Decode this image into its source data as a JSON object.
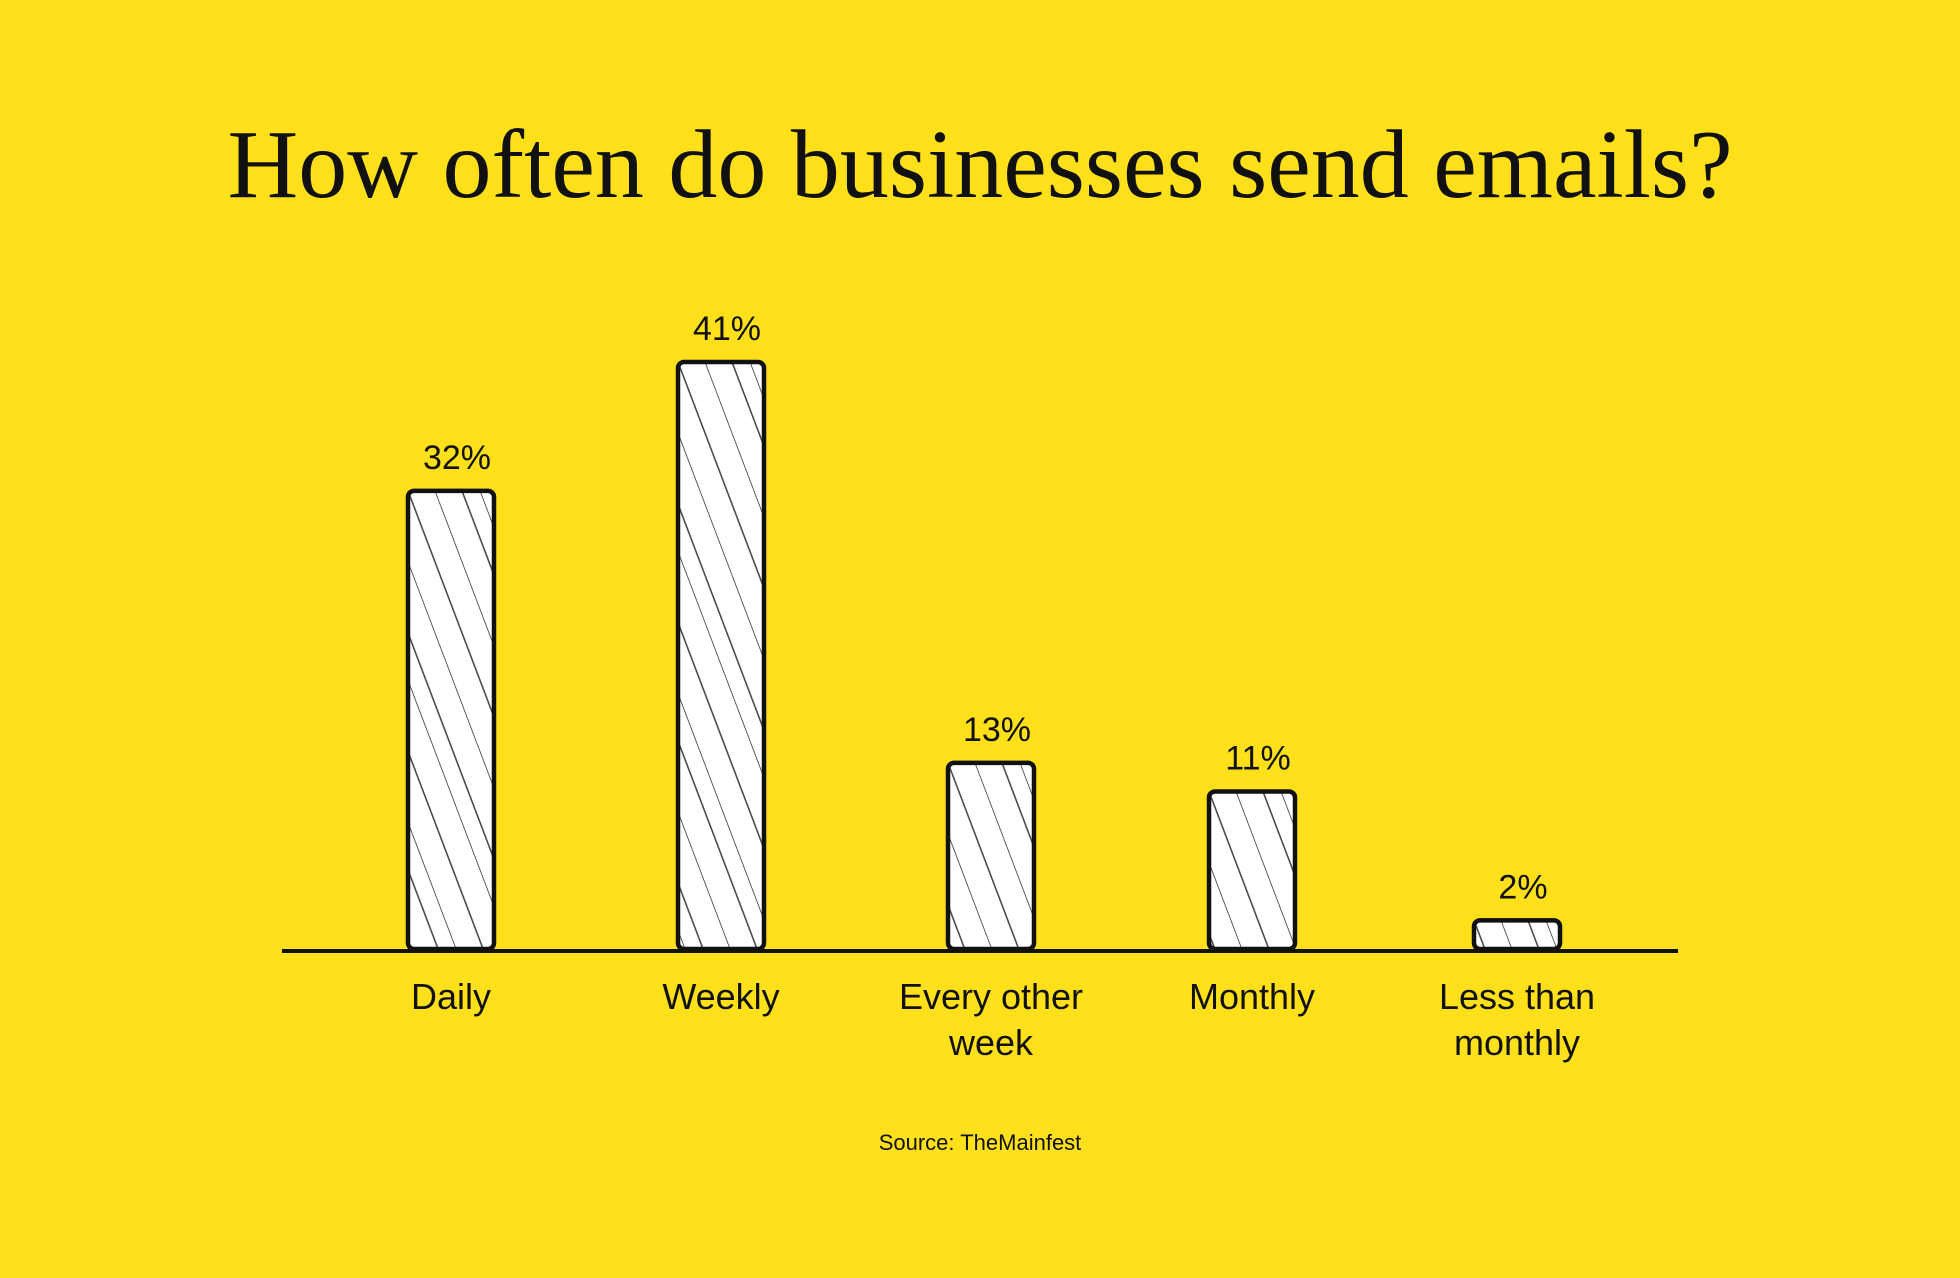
{
  "colors": {
    "background": "#FFE01B",
    "bar_fill": "#FFFFFF",
    "ink": "#111111"
  },
  "chart_data": {
    "type": "bar",
    "title": "How often do businesses send emails?",
    "categories": [
      [
        "Daily"
      ],
      [
        "Weekly"
      ],
      [
        "Every other",
        "week"
      ],
      [
        "Monthly"
      ],
      [
        "Less than",
        "monthly"
      ]
    ],
    "values": [
      32,
      41,
      13,
      11,
      2
    ],
    "value_labels": [
      "32%",
      "41%",
      "13%",
      "11%",
      "2%"
    ],
    "unit": "%",
    "ylim": [
      0,
      41
    ],
    "grid": false,
    "legend": "none",
    "bar_style": "hand-drawn, hatched",
    "source": "Source: TheMainfest"
  }
}
